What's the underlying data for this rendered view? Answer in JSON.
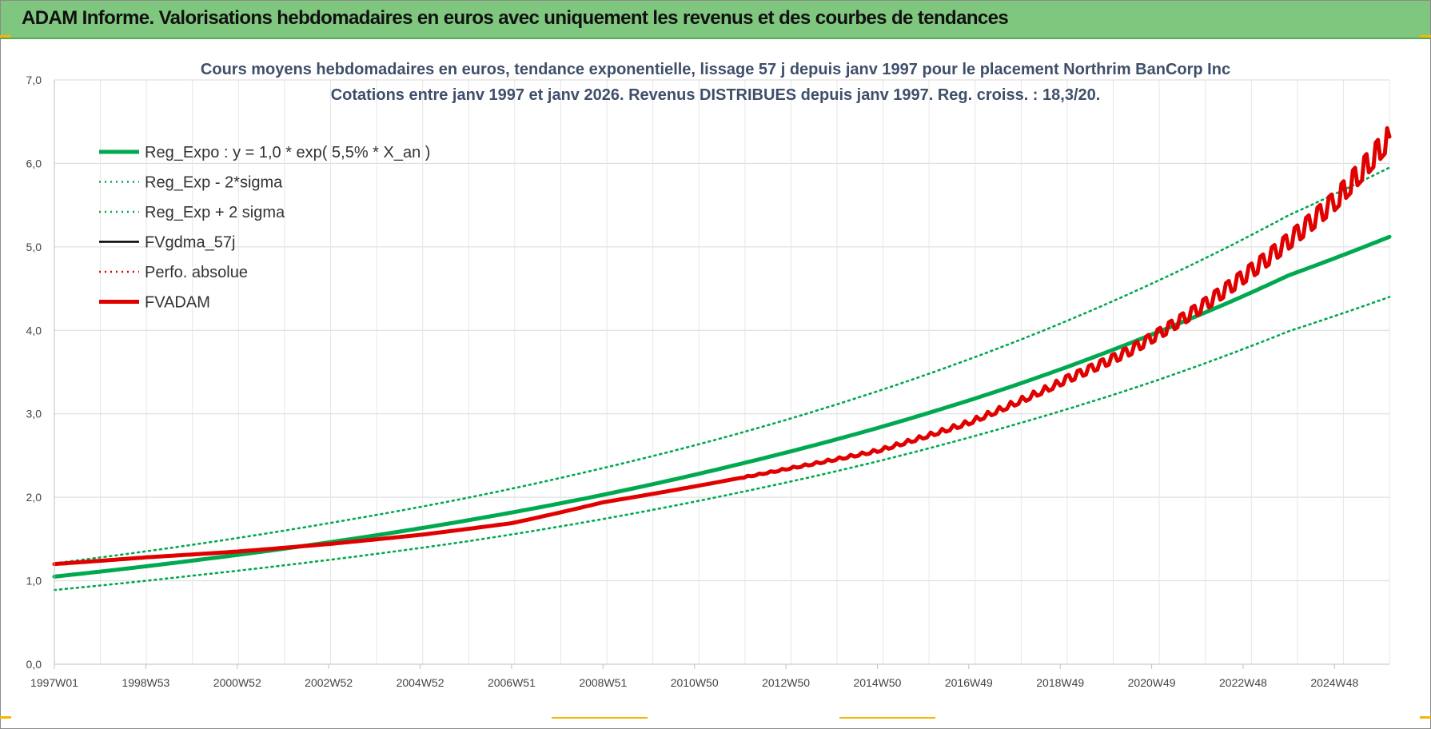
{
  "banner": {
    "title": "ADAM Informe. Valorisations hebdomadaires en euros avec uniquement les revenus et des courbes de tendances"
  },
  "chart_data": {
    "type": "line",
    "title": "Cours moyens hebdomadaires en euros, tendance exponentielle, lissage 57 j depuis janv 1997  pour le placement Northrim BanCorp Inc",
    "subtitle": "Cotations entre janv 1997 et janv 2026. Revenus DISTRIBUES depuis janv 1997. Reg. croiss. : 18,3/20.",
    "xlabel": "",
    "ylabel": "",
    "x_ticks": [
      "1997W01",
      "1998W53",
      "2000W52",
      "2002W52",
      "2004W52",
      "2006W51",
      "2008W51",
      "2010W50",
      "2012W50",
      "2014W50",
      "2016W49",
      "2018W49",
      "2020W49",
      "2022W48",
      "2024W48"
    ],
    "x_range_years": [
      1997.0,
      2026.2
    ],
    "ylim": [
      0,
      7
    ],
    "y_ticks": [
      "0,0",
      "1,0",
      "2,0",
      "3,0",
      "4,0",
      "5,0",
      "6,0",
      "7,0"
    ],
    "grid": true,
    "legend_position": "top-left",
    "series": [
      {
        "name": "Reg_Expo : y = 1,0 * exp( 5,5% *  X_an )",
        "color": "#00a94f",
        "style": "solid-thick",
        "x": [
          1997,
          2000,
          2003,
          2006,
          2009,
          2012,
          2015,
          2018,
          2021,
          2024,
          2026.2
        ],
        "values": [
          1.05,
          1.24,
          1.46,
          1.72,
          2.03,
          2.4,
          2.83,
          3.34,
          3.95,
          4.66,
          5.12
        ]
      },
      {
        "name": "Reg_Exp - 2*sigma",
        "color": "#00a94f",
        "style": "dotted",
        "x": [
          1997,
          2000,
          2003,
          2006,
          2009,
          2012,
          2015,
          2018,
          2021,
          2024,
          2026.2
        ],
        "values": [
          0.89,
          1.06,
          1.25,
          1.47,
          1.74,
          2.06,
          2.43,
          2.87,
          3.38,
          3.99,
          4.4
        ]
      },
      {
        "name": "Reg_Exp + 2 sigma",
        "color": "#00a94f",
        "style": "dotted",
        "x": [
          1997,
          2000,
          2003,
          2006,
          2009,
          2012,
          2015,
          2018,
          2021,
          2024,
          2026.2
        ],
        "values": [
          1.21,
          1.43,
          1.69,
          1.99,
          2.35,
          2.77,
          3.27,
          3.86,
          4.56,
          5.38,
          5.95
        ]
      },
      {
        "name": "FVgdma_57j",
        "color": "#000000",
        "style": "solid",
        "x": [
          1997,
          1999,
          2001,
          2003,
          2005,
          2007,
          2009,
          2011,
          2013,
          2015,
          2017,
          2019,
          2020.5,
          2022,
          2023.5,
          2025,
          2026.2
        ],
        "values": [
          1.2,
          1.28,
          1.35,
          1.44,
          1.55,
          1.69,
          1.94,
          2.13,
          2.34,
          2.56,
          2.9,
          3.38,
          3.75,
          4.25,
          4.85,
          5.55,
          6.32
        ]
      },
      {
        "name": "Perfo. absolue",
        "color": "#e00000",
        "style": "dotted",
        "x": [
          1997,
          1999,
          2001,
          2003,
          2005,
          2007,
          2009,
          2011,
          2013,
          2015,
          2017,
          2019,
          2020.5,
          2022,
          2023.5,
          2025,
          2026.2
        ],
        "values": [
          1.2,
          1.28,
          1.35,
          1.44,
          1.55,
          1.69,
          1.94,
          2.13,
          2.34,
          2.56,
          2.9,
          3.38,
          3.75,
          4.25,
          4.85,
          5.55,
          6.32
        ]
      },
      {
        "name": "FVADAM",
        "color": "#e00000",
        "style": "solid-thick",
        "x": [
          1997,
          1999,
          2001,
          2003,
          2005,
          2007,
          2009,
          2011,
          2013,
          2015,
          2017,
          2019,
          2020.5,
          2022,
          2023.5,
          2025,
          2026.2
        ],
        "values": [
          1.2,
          1.28,
          1.35,
          1.44,
          1.55,
          1.69,
          1.94,
          2.13,
          2.34,
          2.56,
          2.9,
          3.38,
          3.75,
          4.25,
          4.85,
          5.55,
          6.32
        ]
      }
    ]
  }
}
